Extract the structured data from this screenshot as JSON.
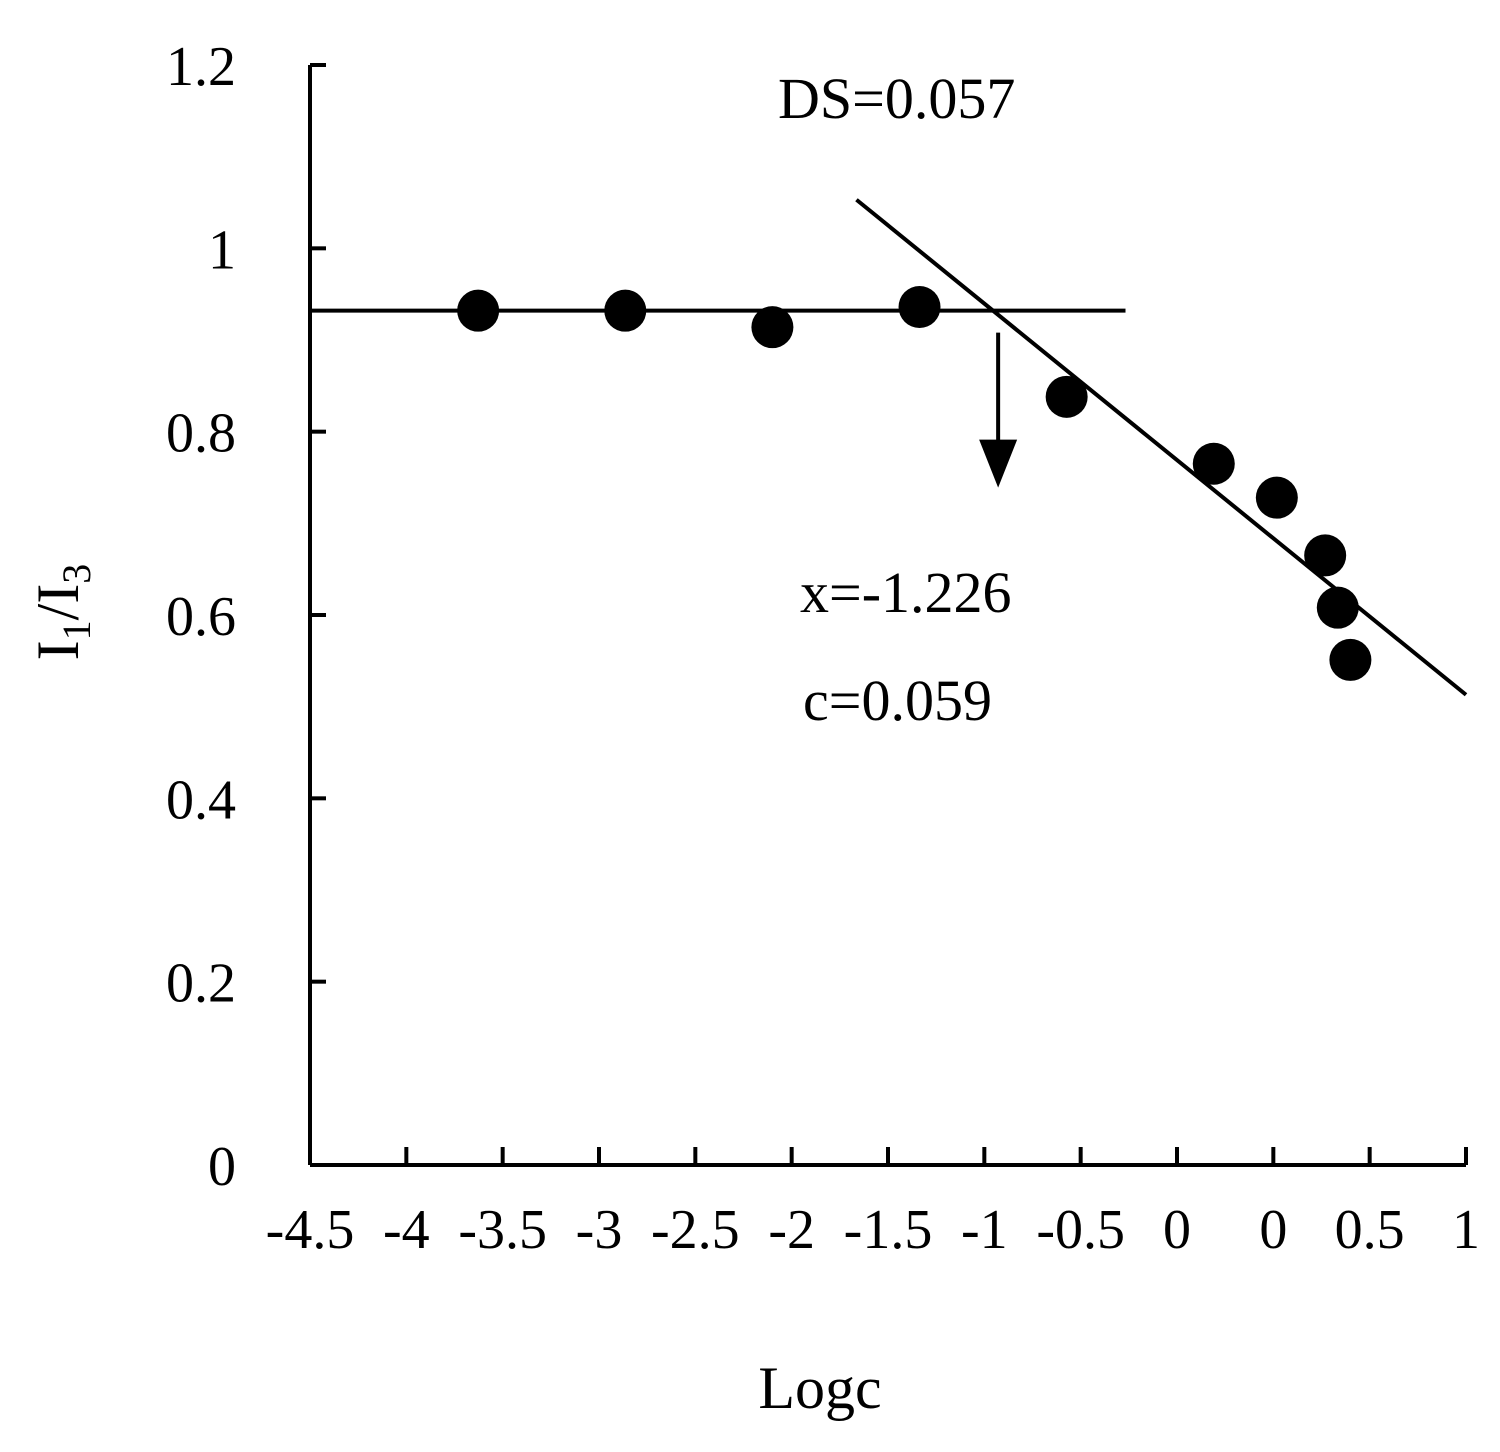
{
  "chart_data": {
    "type": "scatter",
    "xlabel": "Logc",
    "ylabel": {
      "main": "I",
      "sub1": "1",
      "slash": "/",
      "main2": "I",
      "sub2": "3"
    },
    "xlim": [
      -4.5,
      1
    ],
    "ylim": [
      0,
      1.2
    ],
    "x_tick_labels": [
      "-4.5",
      "-4",
      "-3.5",
      "-3",
      "-2.5",
      "-2",
      "-1.5",
      "-1",
      "-0.5",
      "0",
      "0",
      "0.5",
      "1"
    ],
    "y_ticks": [
      0,
      0.2,
      0.4,
      0.6,
      0.8,
      1,
      1.2
    ],
    "y_tick_labels": [
      "0",
      "0.2",
      "0.4",
      "0.6",
      "0.8",
      "1",
      "1.2"
    ],
    "grid": false,
    "points": [
      {
        "x": -3.7,
        "y": 0.932
      },
      {
        "x": -3.0,
        "y": 0.932
      },
      {
        "x": -2.3,
        "y": 0.914
      },
      {
        "x": -1.6,
        "y": 0.936
      },
      {
        "x": -0.9,
        "y": 0.838
      },
      {
        "x": -0.2,
        "y": 0.765
      },
      {
        "x": 0.1,
        "y": 0.728
      },
      {
        "x": 0.33,
        "y": 0.665
      },
      {
        "x": 0.39,
        "y": 0.608
      },
      {
        "x": 0.45,
        "y": 0.551
      }
    ],
    "fit_lines": [
      {
        "x1": -4.5,
        "y1": 0.932,
        "x2": -0.62,
        "y2": 0.932
      },
      {
        "x1": -1.9,
        "y1": 1.053,
        "x2": 1.0,
        "y2": 0.513
      }
    ],
    "intersection": {
      "x": -1.226,
      "y": 0.932
    },
    "annotations": {
      "ds": "DS=0.057",
      "x_value": "x=-1.226",
      "c_value": "c=0.059"
    },
    "colors": {
      "marker": "#000000",
      "line": "#000000"
    }
  }
}
